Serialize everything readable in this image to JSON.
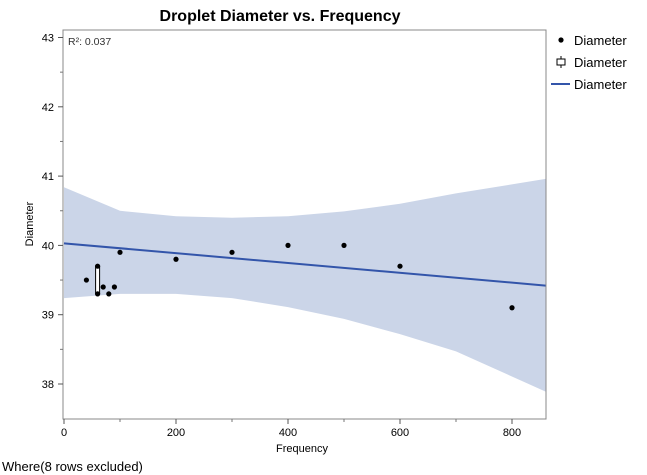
{
  "chart_data": {
    "type": "scatter",
    "title": "Droplet Diameter vs. Frequency",
    "xlabel": "Frequency",
    "ylabel": "Diameter",
    "xlim": [
      0,
      840
    ],
    "ylim": [
      37.5,
      43.1
    ],
    "x_ticks": [
      0,
      200,
      400,
      600,
      800
    ],
    "y_ticks": [
      38,
      39,
      40,
      41,
      42,
      43
    ],
    "annotation": "R²: 0.037",
    "points": [
      {
        "x": 40,
        "y": 39.5
      },
      {
        "x": 60,
        "y": 39.7
      },
      {
        "x": 60,
        "y": 39.3
      },
      {
        "x": 70,
        "y": 39.4
      },
      {
        "x": 80,
        "y": 39.3
      },
      {
        "x": 90,
        "y": 39.4
      },
      {
        "x": 100,
        "y": 39.9
      },
      {
        "x": 200,
        "y": 39.8
      },
      {
        "x": 300,
        "y": 39.9
      },
      {
        "x": 400,
        "y": 40.0
      },
      {
        "x": 500,
        "y": 40.0
      },
      {
        "x": 600,
        "y": 39.7
      },
      {
        "x": 800,
        "y": 39.1
      }
    ],
    "box": {
      "x": 60,
      "low": 39.3,
      "high": 39.7
    },
    "fit_line": {
      "x": [
        0,
        860
      ],
      "y": [
        40.03,
        39.42
      ]
    },
    "confidence_band": {
      "x": [
        0,
        100,
        200,
        300,
        400,
        500,
        600,
        700,
        860
      ],
      "upper": [
        40.84,
        40.5,
        40.42,
        40.4,
        40.42,
        40.49,
        40.6,
        40.75,
        40.96
      ],
      "lower": [
        39.24,
        39.3,
        39.3,
        39.24,
        39.11,
        38.94,
        38.72,
        38.47,
        37.89
      ]
    },
    "legend": [
      {
        "marker": "dot",
        "label": "Diameter"
      },
      {
        "marker": "box",
        "label": "Diameter"
      },
      {
        "marker": "line",
        "label": "Diameter"
      }
    ],
    "legend_position": "right",
    "grid": false,
    "colors": {
      "line": "#3355aa",
      "band": "#cbd5e8",
      "points": "#000000"
    }
  },
  "footer": "Where(8 rows excluded)"
}
